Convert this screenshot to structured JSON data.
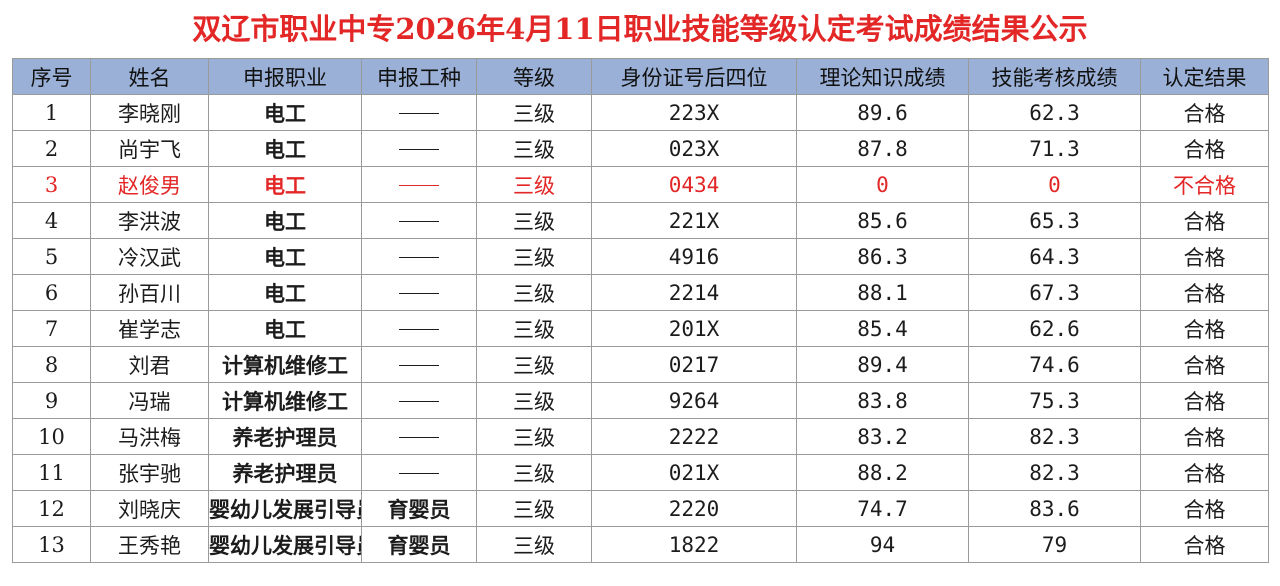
{
  "title": "双辽市职业中专2026年4月11日职业技能等级认定考试成绩结果公示",
  "colors": {
    "title": "#e32626",
    "header_bg": "#9ab0d6",
    "fail_text": "#e32626",
    "flag": "#2f8f2f"
  },
  "columns": {
    "seq": "序号",
    "name": "姓名",
    "job": "申报职业",
    "type": "申报工种",
    "level": "等级",
    "id": "身份证号后四位",
    "theory": "理论知识成绩",
    "skill": "技能考核成绩",
    "result": "认定结果"
  },
  "rows": [
    {
      "seq": "1",
      "name": "李晓刚",
      "job": "电工",
      "type": "——",
      "level": "三级",
      "id": "223X",
      "theory": "89.6",
      "skill": "62.3",
      "result": "合格"
    },
    {
      "seq": "2",
      "name": "尚宇飞",
      "job": "电工",
      "type": "——",
      "level": "三级",
      "id": "023X",
      "theory": "87.8",
      "skill": "71.3",
      "result": "合格"
    },
    {
      "seq": "3",
      "name": "赵俊男",
      "job": "电工",
      "type": "——",
      "level": "三级",
      "id": "0434",
      "theory": "0",
      "skill": "0",
      "result": "不合格"
    },
    {
      "seq": "4",
      "name": "李洪波",
      "job": "电工",
      "type": "——",
      "level": "三级",
      "id": "221X",
      "theory": "85.6",
      "skill": "65.3",
      "result": "合格"
    },
    {
      "seq": "5",
      "name": "冷汉武",
      "job": "电工",
      "type": "——",
      "level": "三级",
      "id": "4916",
      "theory": "86.3",
      "skill": "64.3",
      "result": "合格"
    },
    {
      "seq": "6",
      "name": "孙百川",
      "job": "电工",
      "type": "——",
      "level": "三级",
      "id": "2214",
      "theory": "88.1",
      "skill": "67.3",
      "result": "合格"
    },
    {
      "seq": "7",
      "name": "崔学志",
      "job": "电工",
      "type": "——",
      "level": "三级",
      "id": "201X",
      "theory": "85.4",
      "skill": "62.6",
      "result": "合格"
    },
    {
      "seq": "8",
      "name": "刘君",
      "job": "计算机维修工",
      "type": "——",
      "level": "三级",
      "id": "0217",
      "theory": "89.4",
      "skill": "74.6",
      "result": "合格"
    },
    {
      "seq": "9",
      "name": "冯瑞",
      "job": "计算机维修工",
      "type": "——",
      "level": "三级",
      "id": "9264",
      "theory": "83.8",
      "skill": "75.3",
      "result": "合格"
    },
    {
      "seq": "10",
      "name": "马洪梅",
      "job": "养老护理员",
      "type": "——",
      "level": "三级",
      "id": "2222",
      "theory": "83.2",
      "skill": "82.3",
      "result": "合格"
    },
    {
      "seq": "11",
      "name": "张宇驰",
      "job": "养老护理员",
      "type": "——",
      "level": "三级",
      "id": "021X",
      "theory": "88.2",
      "skill": "82.3",
      "result": "合格"
    },
    {
      "seq": "12",
      "name": "刘晓庆",
      "job": "婴幼儿发展引导员",
      "type": "育婴员",
      "level": "三级",
      "id": "2220",
      "theory": "74.7",
      "skill": "83.6",
      "result": "合格"
    },
    {
      "seq": "13",
      "name": "王秀艳",
      "job": "婴幼儿发展引导员",
      "type": "育婴员",
      "level": "三级",
      "id": "1822",
      "theory": "94",
      "skill": "79",
      "result": "合格"
    }
  ]
}
